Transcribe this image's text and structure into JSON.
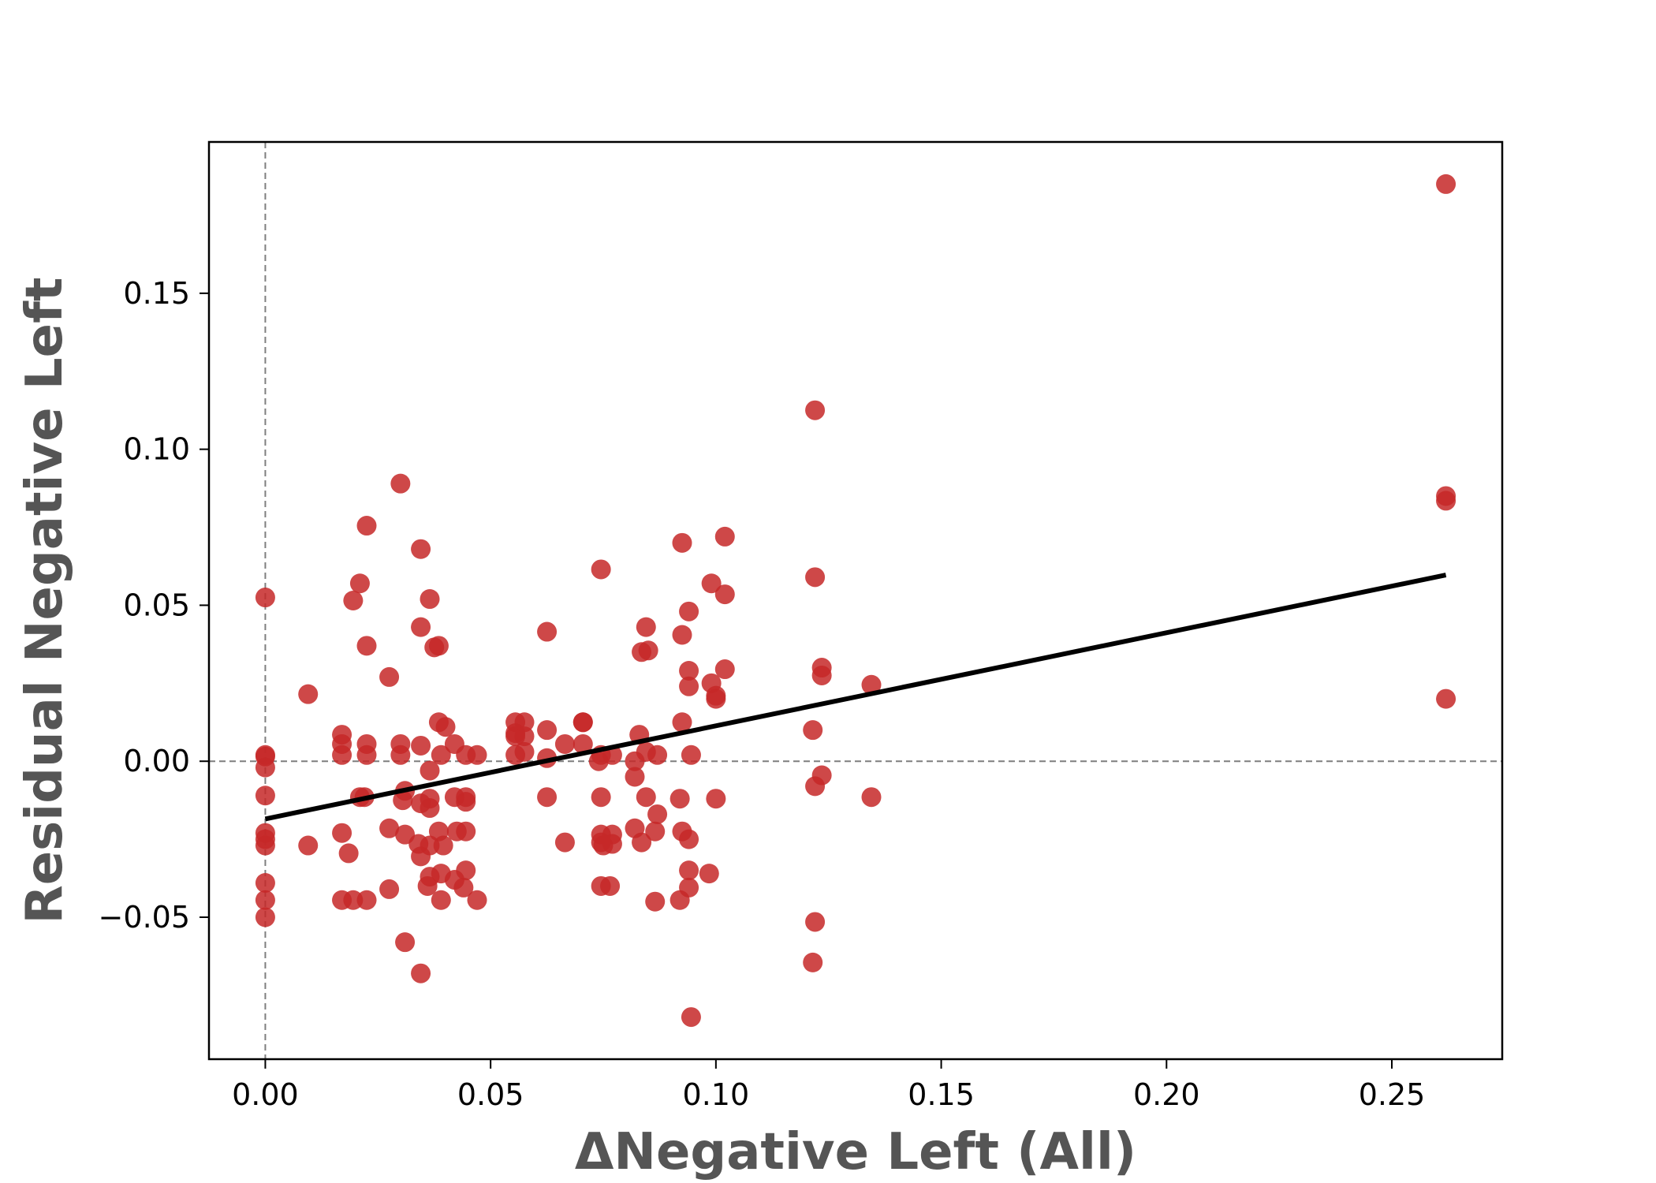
{
  "chart_data": {
    "type": "scatter",
    "xlabel": "ΔNegative Left  (All)",
    "ylabel": "Residual Negative Left",
    "xlim": [
      -0.0125,
      0.2745
    ],
    "ylim": [
      -0.0955,
      0.1985
    ],
    "xticks": [
      0.0,
      0.05,
      0.1,
      0.15,
      0.2,
      0.25
    ],
    "xtick_labels": [
      "0.00",
      "0.05",
      "0.10",
      "0.15",
      "0.20",
      "0.25"
    ],
    "yticks": [
      -0.05,
      0.0,
      0.05,
      0.1,
      0.15
    ],
    "ytick_labels": [
      "−0.05",
      "0.00",
      "0.05",
      "0.10",
      "0.15"
    ],
    "grid": false,
    "reference_lines": {
      "x": 0.0,
      "y": 0.0,
      "style": "dashed",
      "color": "#7f7f7f"
    },
    "point_color": "#c62828",
    "fit_line": {
      "x": [
        0.0,
        0.262
      ],
      "y": [
        -0.0185,
        0.0597
      ],
      "color": "#000000"
    },
    "points": [
      [
        0.262,
        0.185
      ],
      [
        0.262,
        0.085
      ],
      [
        0.262,
        0.0835
      ],
      [
        0.262,
        0.02
      ],
      [
        0.122,
        0.1125
      ],
      [
        0.122,
        0.059
      ],
      [
        0.1215,
        0.01
      ],
      [
        0.122,
        -0.008
      ],
      [
        0.122,
        -0.0515
      ],
      [
        0.1215,
        -0.0645
      ],
      [
        0.1235,
        0.03
      ],
      [
        0.1235,
        0.0275
      ],
      [
        0.1235,
        -0.0045
      ],
      [
        0.1345,
        0.0245
      ],
      [
        0.1345,
        -0.0115
      ],
      [
        0.102,
        0.072
      ],
      [
        0.102,
        0.0535
      ],
      [
        0.102,
        0.0295
      ],
      [
        0.099,
        0.057
      ],
      [
        0.099,
        0.025
      ],
      [
        0.1,
        0.021
      ],
      [
        0.1,
        0.02
      ],
      [
        0.1,
        -0.012
      ],
      [
        0.0985,
        -0.036
      ],
      [
        0.0925,
        0.07
      ],
      [
        0.0925,
        0.0405
      ],
      [
        0.0925,
        0.0125
      ],
      [
        0.092,
        -0.012
      ],
      [
        0.0925,
        -0.0225
      ],
      [
        0.092,
        -0.0445
      ],
      [
        0.094,
        0.048
      ],
      [
        0.094,
        0.029
      ],
      [
        0.094,
        0.024
      ],
      [
        0.0945,
        0.002
      ],
      [
        0.094,
        -0.025
      ],
      [
        0.094,
        -0.035
      ],
      [
        0.094,
        -0.0405
      ],
      [
        0.0945,
        -0.082
      ],
      [
        0.0845,
        0.043
      ],
      [
        0.0835,
        0.035
      ],
      [
        0.085,
        0.0355
      ],
      [
        0.083,
        0.0085
      ],
      [
        0.0845,
        0.003
      ],
      [
        0.0845,
        -0.0115
      ],
      [
        0.0835,
        -0.026
      ],
      [
        0.087,
        -0.017
      ],
      [
        0.0865,
        -0.0225
      ],
      [
        0.0865,
        -0.045
      ],
      [
        0.087,
        0.002
      ],
      [
        0.082,
        0.0
      ],
      [
        0.082,
        -0.005
      ],
      [
        0.082,
        -0.0215
      ],
      [
        0.0745,
        0.0615
      ],
      [
        0.0745,
        0.002
      ],
      [
        0.074,
        0.0
      ],
      [
        0.0745,
        -0.0115
      ],
      [
        0.0745,
        -0.0235
      ],
      [
        0.0745,
        -0.026
      ],
      [
        0.075,
        -0.027
      ],
      [
        0.0745,
        -0.04
      ],
      [
        0.077,
        -0.0235
      ],
      [
        0.077,
        -0.0265
      ],
      [
        0.0765,
        -0.04
      ],
      [
        0.077,
        0.002
      ],
      [
        0.0705,
        0.0125
      ],
      [
        0.0705,
        0.0125
      ],
      [
        0.0705,
        0.0055
      ],
      [
        0.0665,
        0.0055
      ],
      [
        0.0665,
        -0.026
      ],
      [
        0.0625,
        0.0415
      ],
      [
        0.0625,
        0.01
      ],
      [
        0.0625,
        0.001
      ],
      [
        0.0625,
        -0.0115
      ],
      [
        0.0555,
        0.0125
      ],
      [
        0.0555,
        0.009
      ],
      [
        0.0555,
        0.008
      ],
      [
        0.0555,
        0.002
      ],
      [
        0.0575,
        0.0125
      ],
      [
        0.0575,
        0.008
      ],
      [
        0.0575,
        0.003
      ],
      [
        0.047,
        0.002
      ],
      [
        0.047,
        -0.0445
      ],
      [
        0.0445,
        0.002
      ],
      [
        0.0445,
        -0.0115
      ],
      [
        0.0445,
        -0.013
      ],
      [
        0.0445,
        -0.0225
      ],
      [
        0.0445,
        -0.035
      ],
      [
        0.044,
        -0.0405
      ],
      [
        0.042,
        0.0055
      ],
      [
        0.042,
        -0.0115
      ],
      [
        0.0425,
        -0.0225
      ],
      [
        0.042,
        -0.038
      ],
      [
        0.0385,
        0.037
      ],
      [
        0.0385,
        0.0125
      ],
      [
        0.04,
        0.011
      ],
      [
        0.039,
        0.002
      ],
      [
        0.0385,
        -0.0225
      ],
      [
        0.0395,
        -0.027
      ],
      [
        0.039,
        -0.036
      ],
      [
        0.039,
        -0.0445
      ],
      [
        0.0365,
        0.052
      ],
      [
        0.0375,
        0.0365
      ],
      [
        0.0365,
        -0.003
      ],
      [
        0.0365,
        -0.012
      ],
      [
        0.0365,
        -0.015
      ],
      [
        0.0365,
        -0.027
      ],
      [
        0.0365,
        -0.037
      ],
      [
        0.036,
        -0.04
      ],
      [
        0.0345,
        0.068
      ],
      [
        0.0345,
        0.043
      ],
      [
        0.0345,
        0.005
      ],
      [
        0.0345,
        -0.0135
      ],
      [
        0.034,
        -0.0265
      ],
      [
        0.0345,
        -0.0305
      ],
      [
        0.0345,
        -0.068
      ],
      [
        0.03,
        0.089
      ],
      [
        0.03,
        0.0055
      ],
      [
        0.03,
        0.002
      ],
      [
        0.031,
        -0.0095
      ],
      [
        0.0305,
        -0.0125
      ],
      [
        0.031,
        -0.0235
      ],
      [
        0.031,
        -0.058
      ],
      [
        0.0275,
        0.027
      ],
      [
        0.0275,
        -0.0215
      ],
      [
        0.0275,
        -0.041
      ],
      [
        0.0225,
        0.0755
      ],
      [
        0.0225,
        0.037
      ],
      [
        0.0225,
        0.0055
      ],
      [
        0.0225,
        0.002
      ],
      [
        0.022,
        -0.0115
      ],
      [
        0.0225,
        -0.0445
      ],
      [
        0.021,
        0.057
      ],
      [
        0.0195,
        0.0515
      ],
      [
        0.021,
        -0.0115
      ],
      [
        0.0185,
        -0.0295
      ],
      [
        0.0195,
        -0.0445
      ],
      [
        0.017,
        0.0085
      ],
      [
        0.017,
        0.0055
      ],
      [
        0.017,
        0.002
      ],
      [
        0.017,
        -0.023
      ],
      [
        0.017,
        -0.0445
      ],
      [
        0.0095,
        0.0215
      ],
      [
        0.0095,
        -0.027
      ],
      [
        0.0,
        0.0525
      ],
      [
        0.0,
        0.002
      ],
      [
        0.0,
        0.0015
      ],
      [
        0.0,
        -0.002
      ],
      [
        0.0,
        -0.011
      ],
      [
        0.0,
        -0.023
      ],
      [
        0.0,
        -0.025
      ],
      [
        0.0,
        -0.027
      ],
      [
        0.0,
        -0.039
      ],
      [
        0.0,
        -0.0445
      ],
      [
        0.0,
        -0.05
      ]
    ]
  }
}
